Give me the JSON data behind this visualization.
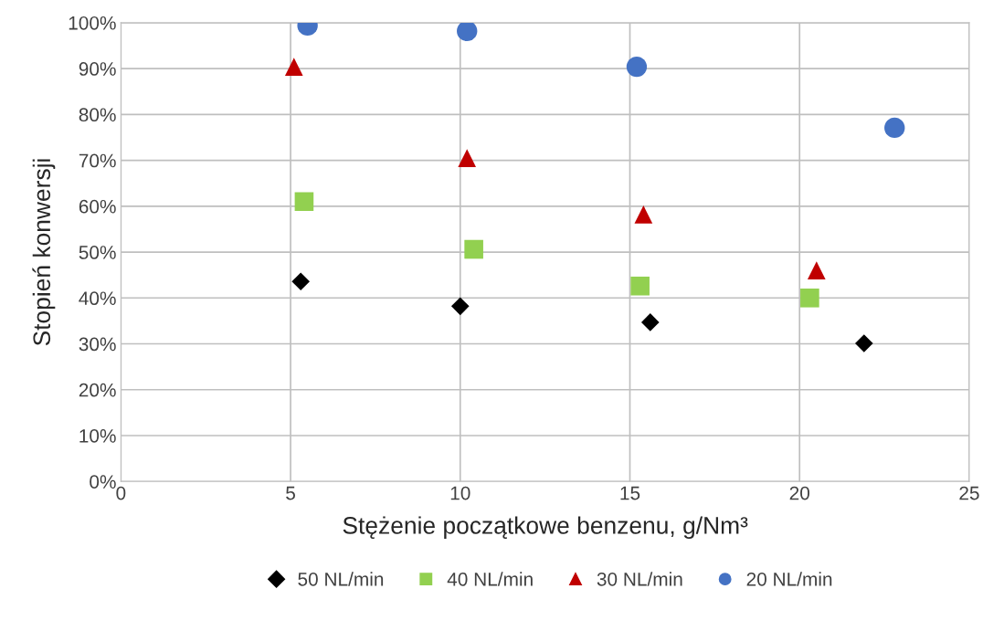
{
  "chart_data": {
    "type": "scatter",
    "xlabel": "Stężenie początkowe benzenu, g/Nm³",
    "ylabel": "Stopień konwersji",
    "xlim": [
      0,
      25
    ],
    "xticks": [
      0,
      5,
      10,
      15,
      20,
      25
    ],
    "ylim": [
      0,
      100
    ],
    "yticks": [
      {
        "value": 0,
        "label": "0%"
      },
      {
        "value": 10,
        "label": "10%"
      },
      {
        "value": 20,
        "label": "20%"
      },
      {
        "value": 30,
        "label": "30%"
      },
      {
        "value": 40,
        "label": "40%"
      },
      {
        "value": 50,
        "label": "50%"
      },
      {
        "value": 60,
        "label": "60%"
      },
      {
        "value": 70,
        "label": "70%"
      },
      {
        "value": 80,
        "label": "80%"
      },
      {
        "value": 90,
        "label": "90%"
      },
      {
        "value": 100,
        "label": "100%"
      }
    ],
    "grid": true,
    "legend": "bottom",
    "series": [
      {
        "name": "50 NL/min",
        "color": "#000000",
        "marker": "diamond",
        "x": [
          5.3,
          10.0,
          15.6,
          21.9
        ],
        "values": [
          43.6,
          38.2,
          34.7,
          30.1
        ]
      },
      {
        "name": "40 NL/min",
        "color": "#92d050",
        "marker": "square",
        "x": [
          5.4,
          10.4,
          15.3,
          20.3
        ],
        "values": [
          61.0,
          50.6,
          42.6,
          40.0
        ]
      },
      {
        "name": "30 NL/min",
        "color": "#c00000",
        "marker": "triangle",
        "x": [
          5.1,
          10.2,
          15.4,
          20.5
        ],
        "values": [
          90.4,
          70.5,
          58.2,
          46.0
        ]
      },
      {
        "name": "20 NL/min",
        "color": "#4472c4",
        "marker": "circle",
        "x": [
          5.5,
          10.2,
          15.2,
          22.8
        ],
        "values": [
          99.4,
          98.2,
          90.4,
          77.1
        ]
      }
    ]
  }
}
